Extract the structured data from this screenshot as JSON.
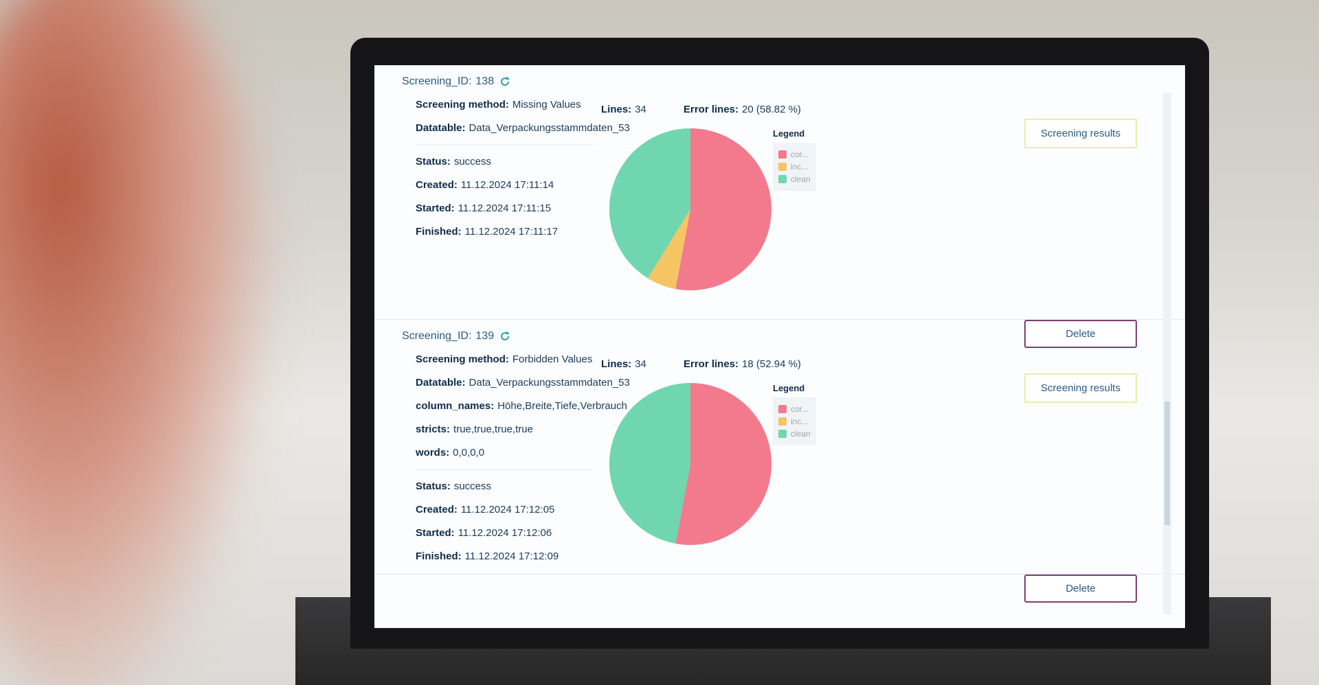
{
  "screenings": [
    {
      "id": {
        "label": "Screening_ID:",
        "value": "138"
      },
      "details": [
        {
          "label": "Screening method:",
          "value": "Missing Values"
        },
        {
          "label": "Datatable:",
          "value": "Data_Verpackungsstammdaten_53"
        }
      ],
      "status": [
        {
          "label": "Status:",
          "value": "success"
        },
        {
          "label": "Created:",
          "value": "11.12.2024 17:11:14"
        },
        {
          "label": "Started:",
          "value": "11.12.2024 17:11:15"
        },
        {
          "label": "Finished:",
          "value": "11.12.2024 17:11:17"
        }
      ],
      "lines": {
        "label": "Lines:",
        "value": "34"
      },
      "error_lines": {
        "label": "Error lines:",
        "value": "20 (58.82 %)"
      },
      "chart": {
        "type": "pie",
        "legend_title": "Legend",
        "labels": [
          "cor...",
          "inc...",
          "clean"
        ],
        "colors": [
          "#f27a8c",
          "#f5c463",
          "#6fd6b0"
        ],
        "values": [
          18,
          2,
          14
        ]
      },
      "buttons": [
        "Screening results",
        "Delete"
      ]
    },
    {
      "id": {
        "label": "Screening_ID:",
        "value": "139"
      },
      "details": [
        {
          "label": "Screening method:",
          "value": "Forbidden Values"
        },
        {
          "label": "Datatable:",
          "value": "Data_Verpackungsstammdaten_53"
        },
        {
          "label": "column_names:",
          "value": "Höhe,Breite,Tiefe,Verbrauch"
        },
        {
          "label": "stricts:",
          "value": "true,true,true,true"
        },
        {
          "label": "words:",
          "value": "0,0,0,0"
        }
      ],
      "status": [
        {
          "label": "Status:",
          "value": "success"
        },
        {
          "label": "Created:",
          "value": "11.12.2024 17:12:05"
        },
        {
          "label": "Started:",
          "value": "11.12.2024 17:12:06"
        },
        {
          "label": "Finished:",
          "value": "11.12.2024 17:12:09"
        }
      ],
      "lines": {
        "label": "Lines:",
        "value": "34"
      },
      "error_lines": {
        "label": "Error lines:",
        "value": "18 (52.94 %)"
      },
      "chart": {
        "type": "pie",
        "legend_title": "Legend",
        "labels": [
          "cor...",
          "inc...",
          "clean"
        ],
        "colors": [
          "#f27a8c",
          "#f5c463",
          "#6fd6b0"
        ],
        "values": [
          18,
          0,
          16
        ]
      },
      "buttons": [
        "Screening results",
        "Delete"
      ]
    }
  ]
}
